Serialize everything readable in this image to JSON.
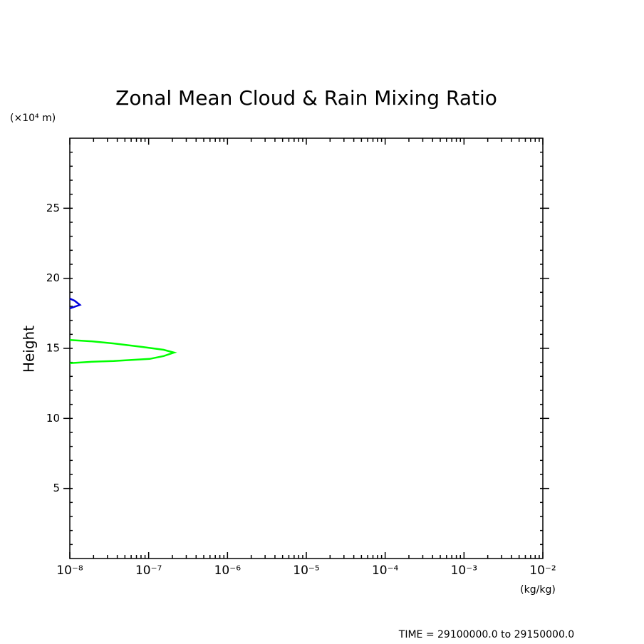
{
  "chart_data": {
    "type": "line",
    "title": "Zonal Mean Cloud & Rain Mixing Ratio",
    "ylabel": "Height",
    "yunit": "(×10⁴ m)",
    "xunit": "(kg/kg)",
    "footer": "TIME = 29100000.0 to 29150000.0",
    "xscale": "log",
    "xlim": [
      1e-08,
      0.01
    ],
    "xticks": [
      {
        "value": 1e-08,
        "label": "10⁻⁸"
      },
      {
        "value": 1e-07,
        "label": "10⁻⁷"
      },
      {
        "value": 1e-06,
        "label": "10⁻⁶"
      },
      {
        "value": 1e-05,
        "label": "10⁻⁵"
      },
      {
        "value": 0.0001,
        "label": "10⁻⁴"
      },
      {
        "value": 0.001,
        "label": "10⁻³"
      },
      {
        "value": 0.01,
        "label": "10⁻²"
      }
    ],
    "ylim": [
      0,
      30
    ],
    "yticks": [
      5,
      10,
      15,
      20,
      25
    ],
    "series": [
      {
        "color": "#00ff00",
        "x": [
          1e-08,
          1.95e-08,
          3.6e-08,
          8.3e-08,
          1.55e-07,
          2.1e-07,
          1.55e-07,
          1.03e-07,
          3.6e-08,
          1.95e-08,
          1e-08
        ],
        "values": [
          15.6,
          15.5,
          15.35,
          15.1,
          14.9,
          14.7,
          14.45,
          14.25,
          14.1,
          14.05,
          13.95
        ]
      },
      {
        "color": "#0000dd",
        "x": [
          1e-08,
          1.15e-08,
          1.34e-08,
          1e-08
        ],
        "values": [
          18.55,
          18.4,
          18.1,
          17.85
        ]
      }
    ]
  }
}
